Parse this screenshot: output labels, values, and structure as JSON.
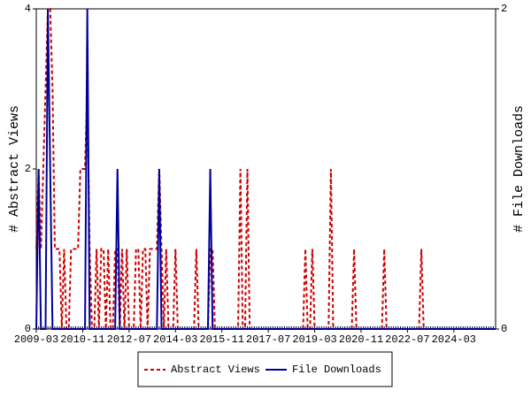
{
  "chart_data": {
    "type": "line",
    "x": [
      "2009-03",
      "2009-04",
      "2009-05",
      "2009-06",
      "2009-07",
      "2009-08",
      "2009-09",
      "2009-10",
      "2009-11",
      "2009-12",
      "2010-01",
      "2010-02",
      "2010-03",
      "2010-04",
      "2010-05",
      "2010-06",
      "2010-07",
      "2010-08",
      "2010-09",
      "2010-10",
      "2010-11",
      "2010-12",
      "2011-01",
      "2011-02",
      "2011-03",
      "2011-04",
      "2011-05",
      "2011-06",
      "2011-07",
      "2011-08",
      "2011-09",
      "2011-10",
      "2011-11",
      "2011-12",
      "2012-01",
      "2012-02",
      "2012-03",
      "2012-04",
      "2012-05",
      "2012-06",
      "2012-07",
      "2012-08",
      "2012-09",
      "2012-10",
      "2012-11",
      "2012-12",
      "2013-01",
      "2013-02",
      "2013-03",
      "2013-04",
      "2013-05",
      "2013-06",
      "2013-07",
      "2013-08",
      "2013-09",
      "2013-10",
      "2013-11",
      "2013-12",
      "2014-01",
      "2014-02",
      "2014-03",
      "2014-04",
      "2014-05",
      "2014-06",
      "2014-07",
      "2014-08",
      "2014-09",
      "2014-10",
      "2014-11",
      "2014-12",
      "2015-01",
      "2015-02",
      "2015-03",
      "2015-04",
      "2015-05",
      "2015-06",
      "2015-07",
      "2015-08",
      "2015-09",
      "2015-10",
      "2015-11",
      "2015-12",
      "2016-01",
      "2016-02",
      "2016-03",
      "2016-04",
      "2016-05",
      "2016-06",
      "2016-07",
      "2016-08",
      "2016-09",
      "2016-10",
      "2016-11",
      "2016-12",
      "2017-01",
      "2017-02",
      "2017-03",
      "2017-04",
      "2017-05",
      "2017-06",
      "2017-07",
      "2017-08",
      "2017-09",
      "2017-10",
      "2017-11",
      "2017-12",
      "2018-01",
      "2018-02",
      "2018-03",
      "2018-04",
      "2018-05",
      "2018-06",
      "2018-07",
      "2018-08",
      "2018-09",
      "2018-10",
      "2018-11",
      "2018-12",
      "2019-01",
      "2019-02",
      "2019-03",
      "2019-04",
      "2019-05",
      "2019-06",
      "2019-07",
      "2019-08",
      "2019-09",
      "2019-10",
      "2019-11",
      "2019-12",
      "2020-01",
      "2020-02",
      "2020-03",
      "2020-04",
      "2020-05",
      "2020-06",
      "2020-07",
      "2020-08",
      "2020-09",
      "2020-10",
      "2020-11",
      "2020-12",
      "2021-01",
      "2021-02",
      "2021-03",
      "2021-04",
      "2021-05",
      "2021-06",
      "2021-07",
      "2021-08",
      "2021-09",
      "2021-10",
      "2021-11",
      "2021-12",
      "2022-01",
      "2022-02",
      "2022-03",
      "2022-04",
      "2022-05",
      "2022-06",
      "2022-07",
      "2022-08",
      "2022-09",
      "2022-10",
      "2022-11",
      "2022-12",
      "2023-01",
      "2023-02",
      "2023-03",
      "2023-04",
      "2023-05",
      "2023-06",
      "2023-07",
      "2023-08",
      "2023-09",
      "2023-10",
      "2023-11",
      "2023-12",
      "2024-01",
      "2024-02",
      "2024-03",
      "2024-04",
      "2024-05",
      "2024-06",
      "2024-07",
      "2024-08",
      "2024-09",
      "2024-10",
      "2024-11",
      "2024-12",
      "2025-01",
      "2025-02",
      "2025-03",
      "2025-04",
      "2025-05",
      "2025-06",
      "2025-07",
      "2025-08",
      "2025-09"
    ],
    "xticks": [
      "2009-03",
      "2010-11",
      "2012-07",
      "2014-03",
      "2015-11",
      "2017-07",
      "2019-03",
      "2020-11",
      "2022-07",
      "2024-03"
    ],
    "series": [
      {
        "name": "Abstract Views",
        "color": "#cc0000",
        "dashed": true,
        "values": [
          1,
          2,
          1,
          2,
          3,
          4,
          4,
          3,
          1,
          1,
          1,
          0,
          1,
          0,
          0,
          1,
          1,
          1,
          1,
          2,
          2,
          2,
          3,
          1,
          0,
          0,
          1,
          0,
          1,
          1,
          0,
          1,
          0,
          0,
          1,
          1,
          0,
          1,
          0,
          1,
          0,
          0,
          0,
          1,
          1,
          0,
          1,
          1,
          0,
          1,
          1,
          1,
          1,
          2,
          1,
          0,
          1,
          0,
          0,
          0,
          1,
          0,
          0,
          0,
          0,
          0,
          0,
          0,
          0,
          1,
          0,
          0,
          0,
          0,
          0,
          1,
          1,
          0,
          0,
          0,
          0,
          0,
          0,
          0,
          0,
          0,
          0,
          0,
          2,
          0,
          0,
          2,
          0,
          0,
          0,
          0,
          0,
          0,
          0,
          0,
          0,
          0,
          0,
          0,
          0,
          0,
          0,
          0,
          0,
          0,
          0,
          0,
          0,
          0,
          0,
          0,
          1,
          0,
          0,
          1,
          0,
          0,
          0,
          0,
          0,
          0,
          0,
          2,
          0,
          0,
          0,
          0,
          0,
          0,
          0,
          0,
          0,
          1,
          0,
          0,
          0,
          0,
          0,
          0,
          0,
          0,
          0,
          0,
          0,
          0,
          1,
          0,
          0,
          0,
          0,
          0,
          0,
          0,
          0,
          0,
          0,
          0,
          0,
          0,
          0,
          0,
          1,
          0,
          0,
          0,
          0,
          0,
          0,
          0,
          0,
          0,
          0,
          0,
          0,
          0,
          0,
          0,
          0,
          0,
          0,
          0,
          0,
          0,
          0,
          0,
          0,
          0,
          0,
          0,
          0,
          0,
          0,
          0,
          0
        ]
      },
      {
        "name": "File Downloads",
        "color": "#000099",
        "dashed": false,
        "axis": "y2",
        "values": [
          0,
          1,
          0,
          0,
          0,
          2,
          1,
          0,
          0,
          0,
          0,
          0,
          0,
          0,
          0,
          0,
          0,
          0,
          0,
          0,
          0,
          0,
          2,
          0,
          0,
          0,
          0,
          0,
          0,
          0,
          0,
          0,
          0,
          0,
          0,
          1,
          0,
          0,
          0,
          0,
          0,
          0,
          0,
          0,
          0,
          0,
          0,
          0,
          0,
          0,
          0,
          0,
          0,
          1,
          0,
          0,
          0,
          0,
          0,
          0,
          0,
          0,
          0,
          0,
          0,
          0,
          0,
          0,
          0,
          0,
          0,
          0,
          0,
          0,
          0,
          1,
          0,
          0,
          0,
          0,
          0,
          0,
          0,
          0,
          0,
          0,
          0,
          0,
          0,
          0,
          0,
          0,
          0,
          0,
          0,
          0,
          0,
          0,
          0,
          0,
          0,
          0,
          0,
          0,
          0,
          0,
          0,
          0,
          0,
          0,
          0,
          0,
          0,
          0,
          0,
          0,
          0,
          0,
          0,
          0,
          0,
          0,
          0,
          0,
          0,
          0,
          0,
          0,
          0,
          0,
          0,
          0,
          0,
          0,
          0,
          0,
          0,
          0,
          0,
          0,
          0,
          0,
          0,
          0,
          0,
          0,
          0,
          0,
          0,
          0,
          0,
          0,
          0,
          0,
          0,
          0,
          0,
          0,
          0,
          0,
          0,
          0,
          0,
          0,
          0,
          0,
          0,
          0,
          0,
          0,
          0,
          0,
          0,
          0,
          0,
          0,
          0,
          0,
          0,
          0,
          0,
          0,
          0,
          0,
          0,
          0,
          0,
          0,
          0,
          0,
          0,
          0,
          0,
          0,
          0,
          0,
          0,
          0,
          0
        ]
      }
    ],
    "ylabel": "# Abstract Views",
    "y2label": "# File Downloads",
    "ylim": [
      0,
      4
    ],
    "yticks": [
      0,
      2,
      4
    ],
    "y2lim": [
      0,
      2
    ],
    "y2ticks": [
      0,
      2
    ]
  }
}
